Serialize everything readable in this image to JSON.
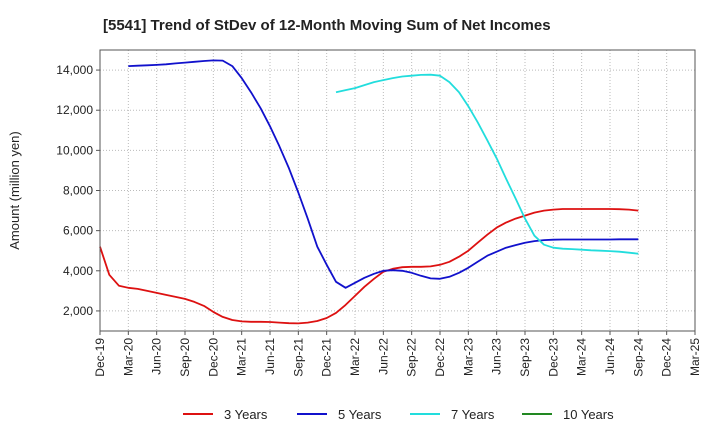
{
  "chart_data": {
    "type": "line",
    "title": "[5541]  Trend of StDev of 12-Month Moving Sum of Net Incomes",
    "xlabel": "",
    "ylabel": "Amount (million yen)",
    "ylim": [
      1000,
      15000
    ],
    "yticks": [
      2000,
      4000,
      6000,
      8000,
      10000,
      12000,
      14000
    ],
    "ytick_labels": [
      "2,000",
      "4,000",
      "6,000",
      "8,000",
      "10,000",
      "12,000",
      "14,000"
    ],
    "x_tick_labels": [
      "Dec-19",
      "Mar-20",
      "Jun-20",
      "Sep-20",
      "Dec-20",
      "Mar-21",
      "Jun-21",
      "Sep-21",
      "Dec-21",
      "Mar-22",
      "Jun-22",
      "Sep-22",
      "Dec-22",
      "Mar-23",
      "Jun-23",
      "Sep-23",
      "Dec-23",
      "Mar-24",
      "Jun-24",
      "Sep-24",
      "Dec-24",
      "Mar-25"
    ],
    "grid": true,
    "legend_position": "bottom",
    "series": [
      {
        "name": "3 Years",
        "color": "#dd1111",
        "points": [
          [
            0,
            5200
          ],
          [
            0.33,
            3800
          ],
          [
            0.67,
            3250
          ],
          [
            1,
            3150
          ],
          [
            1.33,
            3100
          ],
          [
            1.67,
            3000
          ],
          [
            2,
            2900
          ],
          [
            2.33,
            2800
          ],
          [
            2.67,
            2700
          ],
          [
            3,
            2600
          ],
          [
            3.33,
            2450
          ],
          [
            3.67,
            2250
          ],
          [
            4,
            1950
          ],
          [
            4.33,
            1700
          ],
          [
            4.67,
            1550
          ],
          [
            5,
            1480
          ],
          [
            5.33,
            1460
          ],
          [
            5.67,
            1460
          ],
          [
            6,
            1450
          ],
          [
            6.33,
            1420
          ],
          [
            6.67,
            1390
          ],
          [
            7,
            1380
          ],
          [
            7.33,
            1420
          ],
          [
            7.67,
            1500
          ],
          [
            8,
            1650
          ],
          [
            8.33,
            1900
          ],
          [
            8.67,
            2300
          ],
          [
            9,
            2750
          ],
          [
            9.33,
            3200
          ],
          [
            9.67,
            3600
          ],
          [
            10,
            3950
          ],
          [
            10.33,
            4100
          ],
          [
            10.67,
            4180
          ],
          [
            11,
            4200
          ],
          [
            11.33,
            4200
          ],
          [
            11.67,
            4220
          ],
          [
            12,
            4300
          ],
          [
            12.33,
            4450
          ],
          [
            12.67,
            4700
          ],
          [
            13,
            5000
          ],
          [
            13.33,
            5400
          ],
          [
            13.67,
            5800
          ],
          [
            14,
            6150
          ],
          [
            14.33,
            6400
          ],
          [
            14.67,
            6600
          ],
          [
            15,
            6750
          ],
          [
            15.33,
            6900
          ],
          [
            15.67,
            7000
          ],
          [
            16,
            7050
          ],
          [
            16.33,
            7080
          ],
          [
            16.67,
            7080
          ],
          [
            17,
            7080
          ],
          [
            17.33,
            7080
          ],
          [
            17.67,
            7080
          ],
          [
            18,
            7080
          ],
          [
            18.33,
            7070
          ],
          [
            18.67,
            7050
          ],
          [
            19,
            7000
          ]
        ]
      },
      {
        "name": "5 Years",
        "color": "#1111cc",
        "points": [
          [
            1,
            14200
          ],
          [
            1.33,
            14220
          ],
          [
            1.67,
            14240
          ],
          [
            2,
            14260
          ],
          [
            2.33,
            14290
          ],
          [
            2.67,
            14330
          ],
          [
            3,
            14370
          ],
          [
            3.33,
            14410
          ],
          [
            3.67,
            14450
          ],
          [
            4,
            14480
          ],
          [
            4.33,
            14470
          ],
          [
            4.67,
            14200
          ],
          [
            5,
            13600
          ],
          [
            5.33,
            12900
          ],
          [
            5.67,
            12100
          ],
          [
            6,
            11200
          ],
          [
            6.33,
            10200
          ],
          [
            6.67,
            9100
          ],
          [
            7,
            7900
          ],
          [
            7.33,
            6600
          ],
          [
            7.67,
            5200
          ],
          [
            8,
            4300
          ],
          [
            8.33,
            3450
          ],
          [
            8.67,
            3150
          ],
          [
            9,
            3400
          ],
          [
            9.33,
            3650
          ],
          [
            9.67,
            3850
          ],
          [
            10,
            4000
          ],
          [
            10.33,
            4030
          ],
          [
            10.67,
            4000
          ],
          [
            11,
            3900
          ],
          [
            11.33,
            3750
          ],
          [
            11.67,
            3620
          ],
          [
            12,
            3600
          ],
          [
            12.33,
            3700
          ],
          [
            12.67,
            3900
          ],
          [
            13,
            4150
          ],
          [
            13.33,
            4450
          ],
          [
            13.67,
            4750
          ],
          [
            14,
            4950
          ],
          [
            14.33,
            5150
          ],
          [
            14.67,
            5280
          ],
          [
            15,
            5400
          ],
          [
            15.33,
            5480
          ],
          [
            15.67,
            5530
          ],
          [
            16,
            5550
          ],
          [
            16.33,
            5560
          ],
          [
            16.67,
            5560
          ],
          [
            17,
            5560
          ],
          [
            17.33,
            5560
          ],
          [
            17.67,
            5560
          ],
          [
            18,
            5560
          ],
          [
            18.33,
            5570
          ],
          [
            18.67,
            5570
          ],
          [
            19,
            5570
          ]
        ]
      },
      {
        "name": "7 Years",
        "color": "#22dddd",
        "points": [
          [
            8.33,
            12900
          ],
          [
            8.67,
            13000
          ],
          [
            9,
            13100
          ],
          [
            9.33,
            13250
          ],
          [
            9.67,
            13400
          ],
          [
            10,
            13500
          ],
          [
            10.33,
            13600
          ],
          [
            10.67,
            13680
          ],
          [
            11,
            13720
          ],
          [
            11.33,
            13760
          ],
          [
            11.67,
            13770
          ],
          [
            12,
            13720
          ],
          [
            12.33,
            13400
          ],
          [
            12.67,
            12900
          ],
          [
            13,
            12200
          ],
          [
            13.33,
            11400
          ],
          [
            13.67,
            10500
          ],
          [
            14,
            9600
          ],
          [
            14.33,
            8600
          ],
          [
            14.67,
            7600
          ],
          [
            15,
            6600
          ],
          [
            15.33,
            5750
          ],
          [
            15.67,
            5300
          ],
          [
            16,
            5150
          ],
          [
            16.33,
            5100
          ],
          [
            16.67,
            5080
          ],
          [
            17,
            5050
          ],
          [
            17.33,
            5020
          ],
          [
            17.67,
            5000
          ],
          [
            18,
            4980
          ],
          [
            18.33,
            4950
          ],
          [
            18.67,
            4900
          ],
          [
            19,
            4850
          ]
        ]
      },
      {
        "name": "10 Years",
        "color": "#228822",
        "points": []
      }
    ]
  }
}
